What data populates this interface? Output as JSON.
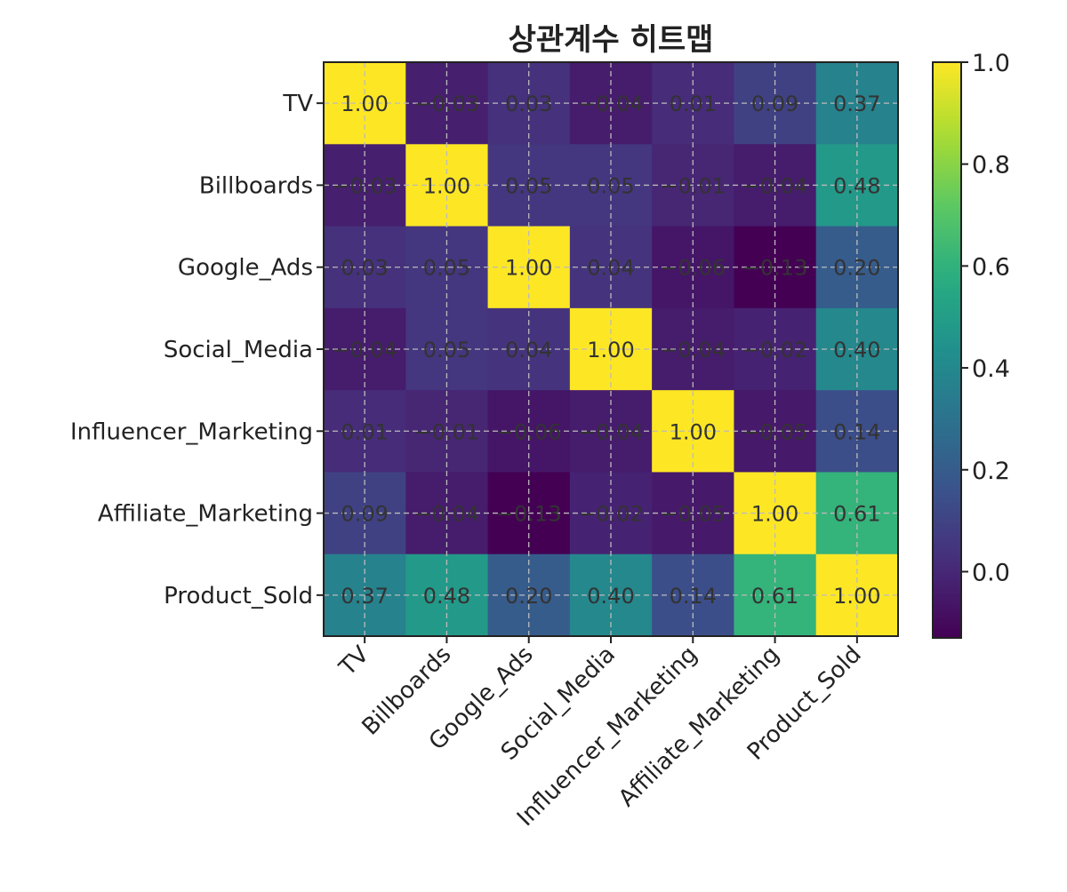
{
  "chart_data": {
    "type": "heatmap",
    "title": "상관계수 히트맵",
    "labels": [
      "TV",
      "Billboards",
      "Google_Ads",
      "Social_Media",
      "Influencer_Marketing",
      "Affiliate_Marketing",
      "Product_Sold"
    ],
    "values": [
      [
        1.0,
        -0.03,
        0.03,
        -0.04,
        0.01,
        0.09,
        0.37
      ],
      [
        -0.03,
        1.0,
        0.05,
        0.05,
        -0.01,
        -0.04,
        0.48
      ],
      [
        0.03,
        0.05,
        1.0,
        0.04,
        -0.06,
        -0.13,
        0.2
      ],
      [
        -0.04,
        0.05,
        0.04,
        1.0,
        -0.04,
        -0.02,
        0.4
      ],
      [
        0.01,
        -0.01,
        -0.06,
        -0.04,
        1.0,
        -0.05,
        0.14
      ],
      [
        0.09,
        -0.04,
        -0.13,
        -0.02,
        -0.05,
        1.0,
        0.61
      ],
      [
        0.37,
        0.48,
        0.2,
        0.4,
        0.14,
        0.61,
        1.0
      ]
    ],
    "colormap": "viridis",
    "vmin": -0.13,
    "vmax": 1.0,
    "colorbar_ticks": [
      "0.0",
      "0.2",
      "0.4",
      "0.6",
      "0.8",
      "1.0"
    ],
    "grid": true
  }
}
